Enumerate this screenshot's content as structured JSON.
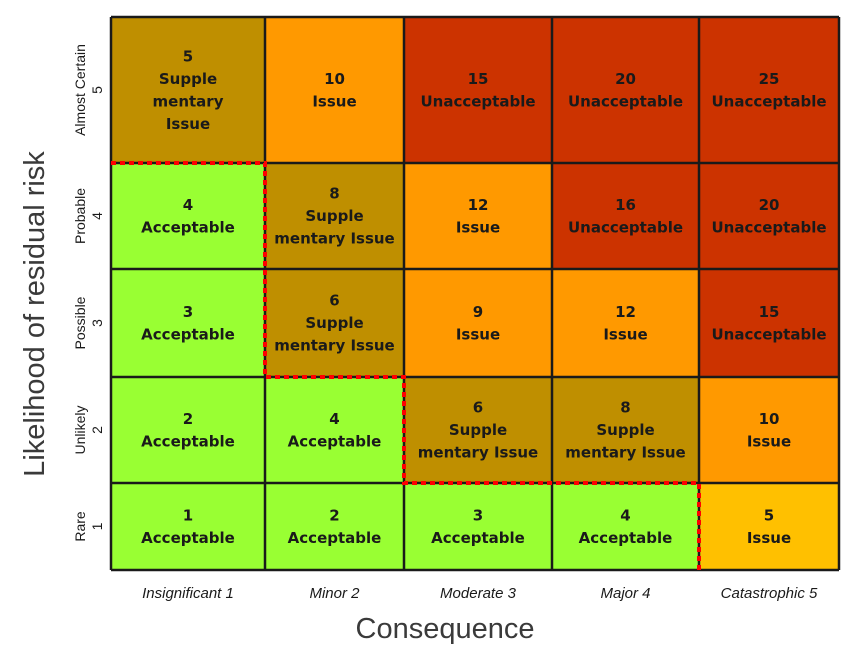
{
  "chart_data": {
    "type": "heatmap",
    "title": "",
    "xlabel": "Consequence",
    "ylabel": "Likelihood of residual risk",
    "x_categories": [
      {
        "name": "Insignificant",
        "value": 1
      },
      {
        "name": "Minor",
        "value": 2
      },
      {
        "name": "Moderate",
        "value": 3
      },
      {
        "name": "Major",
        "value": 4
      },
      {
        "name": "Catastrophic",
        "value": 5
      }
    ],
    "y_categories": [
      {
        "name": "Rare",
        "value": 1
      },
      {
        "name": "Unlikely",
        "value": 2
      },
      {
        "name": "Possible",
        "value": 3
      },
      {
        "name": "Probable",
        "value": 4
      },
      {
        "name": "Almost Certain",
        "value": 5
      }
    ],
    "x_tick_labels": [
      "Insignificant 1",
      "Minor 2",
      "Moderate 3",
      "Major 4",
      "Catastrophic 5"
    ],
    "colors": {
      "acceptable": "#99ff33",
      "supplementary": "#bf8f00",
      "issue": "#ff9900",
      "issue_light": "#ffc000",
      "unacceptable": "#cc3300",
      "border": "#1a1a1a",
      "dashed_border": "#ff0000"
    },
    "cells": [
      {
        "likelihood": 5,
        "consequence": 1,
        "score": 5,
        "rating": "supplementary",
        "lines": [
          "5",
          "Supple",
          "mentary",
          "Issue"
        ]
      },
      {
        "likelihood": 5,
        "consequence": 2,
        "score": 10,
        "rating": "issue",
        "lines": [
          "10",
          "Issue"
        ]
      },
      {
        "likelihood": 5,
        "consequence": 3,
        "score": 15,
        "rating": "unacceptable",
        "lines": [
          "15",
          "Unacceptable"
        ]
      },
      {
        "likelihood": 5,
        "consequence": 4,
        "score": 20,
        "rating": "unacceptable",
        "lines": [
          "20",
          "Unacceptable"
        ]
      },
      {
        "likelihood": 5,
        "consequence": 5,
        "score": 25,
        "rating": "unacceptable",
        "lines": [
          "25",
          "Unacceptable"
        ]
      },
      {
        "likelihood": 4,
        "consequence": 1,
        "score": 4,
        "rating": "acceptable",
        "lines": [
          "4",
          "Acceptable"
        ]
      },
      {
        "likelihood": 4,
        "consequence": 2,
        "score": 8,
        "rating": "supplementary",
        "lines": [
          "8",
          "Supple",
          "mentary Issue"
        ]
      },
      {
        "likelihood": 4,
        "consequence": 3,
        "score": 12,
        "rating": "issue",
        "lines": [
          "12",
          "Issue"
        ]
      },
      {
        "likelihood": 4,
        "consequence": 4,
        "score": 16,
        "rating": "unacceptable",
        "lines": [
          "16",
          "Unacceptable"
        ]
      },
      {
        "likelihood": 4,
        "consequence": 5,
        "score": 20,
        "rating": "unacceptable",
        "lines": [
          "20",
          "Unacceptable"
        ]
      },
      {
        "likelihood": 3,
        "consequence": 1,
        "score": 3,
        "rating": "acceptable",
        "lines": [
          "3",
          "Acceptable"
        ]
      },
      {
        "likelihood": 3,
        "consequence": 2,
        "score": 6,
        "rating": "supplementary",
        "lines": [
          "6",
          "Supple",
          "mentary Issue"
        ]
      },
      {
        "likelihood": 3,
        "consequence": 3,
        "score": 9,
        "rating": "issue",
        "lines": [
          "9",
          "Issue"
        ]
      },
      {
        "likelihood": 3,
        "consequence": 4,
        "score": 12,
        "rating": "issue",
        "lines": [
          "12",
          "Issue"
        ]
      },
      {
        "likelihood": 3,
        "consequence": 5,
        "score": 15,
        "rating": "unacceptable",
        "lines": [
          "15",
          "Unacceptable"
        ]
      },
      {
        "likelihood": 2,
        "consequence": 1,
        "score": 2,
        "rating": "acceptable",
        "lines": [
          "2",
          "Acceptable"
        ]
      },
      {
        "likelihood": 2,
        "consequence": 2,
        "score": 4,
        "rating": "acceptable",
        "lines": [
          "4",
          "Acceptable"
        ]
      },
      {
        "likelihood": 2,
        "consequence": 3,
        "score": 6,
        "rating": "supplementary",
        "lines": [
          "6",
          "Supple",
          "mentary Issue"
        ]
      },
      {
        "likelihood": 2,
        "consequence": 4,
        "score": 8,
        "rating": "supplementary",
        "lines": [
          "8",
          "Supple",
          "mentary Issue"
        ]
      },
      {
        "likelihood": 2,
        "consequence": 5,
        "score": 10,
        "rating": "issue",
        "lines": [
          "10",
          "Issue"
        ]
      },
      {
        "likelihood": 1,
        "consequence": 1,
        "score": 1,
        "rating": "acceptable",
        "lines": [
          "1",
          "Acceptable"
        ]
      },
      {
        "likelihood": 1,
        "consequence": 2,
        "score": 2,
        "rating": "acceptable",
        "lines": [
          "2",
          "Acceptable"
        ]
      },
      {
        "likelihood": 1,
        "consequence": 3,
        "score": 3,
        "rating": "acceptable",
        "lines": [
          "3",
          "Acceptable"
        ]
      },
      {
        "likelihood": 1,
        "consequence": 4,
        "score": 4,
        "rating": "acceptable",
        "lines": [
          "4",
          "Acceptable"
        ]
      },
      {
        "likelihood": 1,
        "consequence": 5,
        "score": 5,
        "rating": "issue_light",
        "lines": [
          "5",
          "Issue"
        ]
      }
    ]
  }
}
